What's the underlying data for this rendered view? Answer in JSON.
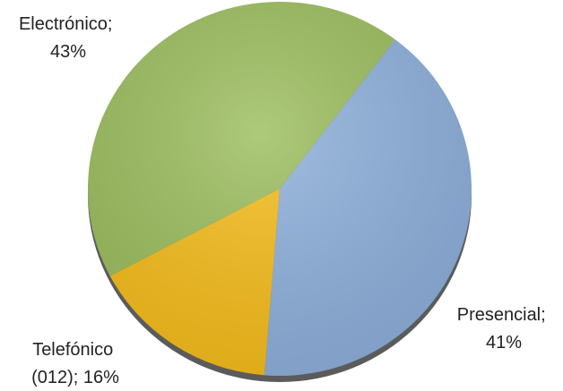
{
  "chart_data": {
    "type": "pie",
    "title": "",
    "legend": "none",
    "slices": [
      {
        "name": "Presencial",
        "value": 41,
        "label_lines": [
          "Presencial;",
          "41%"
        ],
        "color": "#8eb0dc"
      },
      {
        "name": "Telefónico (012)",
        "value": 16,
        "label_lines": [
          "Telefónico",
          "(012); 16%"
        ],
        "color": "#f7bd1a"
      },
      {
        "name": "Electrónico",
        "value": 43,
        "label_lines": [
          "Electrónico;",
          "43%"
        ],
        "color": "#9bbd5d"
      }
    ]
  }
}
